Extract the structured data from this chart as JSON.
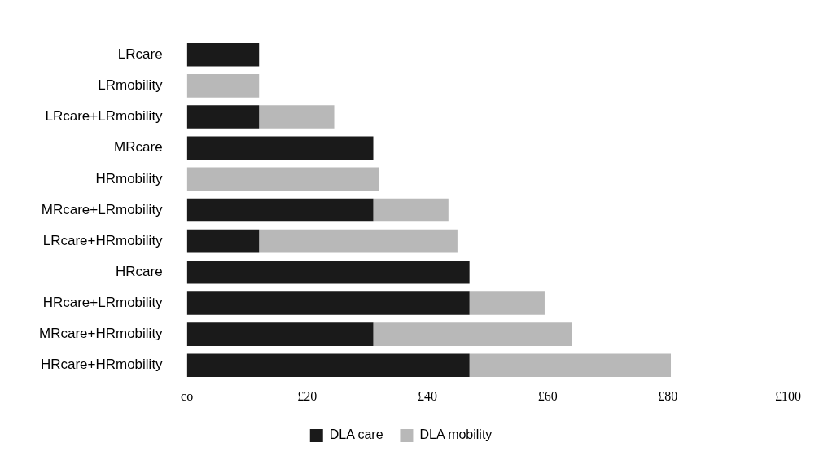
{
  "chart_data": {
    "type": "bar",
    "orientation": "horizontal",
    "stacked": true,
    "categories": [
      "LRcare",
      "LRmobility",
      "LRcare+LRmobility",
      "MRcare",
      "HRmobility",
      "MRcare+LRmobility",
      "LRcare+HRmobility",
      "HRcare",
      "HRcare+LRmobility",
      "MRcare+HRmobility",
      "HRcare+HRmobility"
    ],
    "series": [
      {
        "name": "DLA care",
        "color": "#1a1a1a",
        "values": [
          12,
          0,
          12,
          31,
          0,
          31,
          12,
          47,
          47,
          31,
          47
        ]
      },
      {
        "name": "DLA mobility",
        "color": "#b8b8b8",
        "values": [
          0,
          12,
          12.5,
          0,
          32,
          12.5,
          33,
          0,
          12.5,
          33,
          33.5
        ]
      }
    ],
    "xlim": [
      0,
      100
    ],
    "xticks": [
      {
        "value": 0,
        "label": "co"
      },
      {
        "value": 20,
        "label": "£20"
      },
      {
        "value": 40,
        "label": "£40"
      },
      {
        "value": 60,
        "label": "£60"
      },
      {
        "value": 80,
        "label": "£80"
      },
      {
        "value": 100,
        "label": "£100"
      }
    ],
    "grid": false,
    "legend": "bottom"
  }
}
